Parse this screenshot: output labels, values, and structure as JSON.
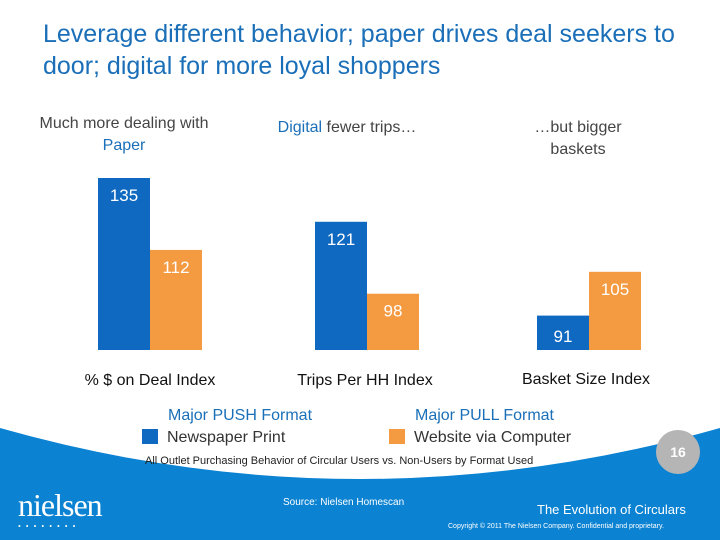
{
  "title": "Leverage different behavior; paper drives deal seekers to door; digital for more loyal shoppers",
  "subtitles": [
    {
      "pre": "Much more dealing with ",
      "hl": "Paper",
      "post": ""
    },
    {
      "pre": "",
      "hl": "Digital",
      "post": " fewer trips…"
    },
    {
      "pre": "…but bigger baskets",
      "hl": "",
      "post": ""
    }
  ],
  "legend": [
    {
      "heading": "Major PUSH Format",
      "label": "Newspaper Print",
      "color": "#1069c0"
    },
    {
      "heading": "Major PULL Format",
      "label": "Website via Computer",
      "color": "#f49a41"
    }
  ],
  "chart_data": {
    "type": "bar",
    "categories": [
      "% $ on Deal Index",
      "Trips Per HH Index",
      "Basket Size Index"
    ],
    "series": [
      {
        "name": "Newspaper Print",
        "values": [
          135,
          121,
          91
        ],
        "color": "#1069c0"
      },
      {
        "name": "Website via Computer",
        "values": [
          112,
          98,
          105
        ],
        "color": "#f49a41"
      }
    ],
    "ylim": [
      80,
      135
    ],
    "grid": false,
    "legend_placement": "bottom"
  },
  "footnote": "All Outlet Purchasing Behavior of Circular Users vs. Non-Users by Format Used",
  "page_number": "16",
  "source": "Source:  Nielsen Homescan",
  "logo": "nielsen",
  "deck_title": "The Evolution of Circulars",
  "copyright": "Copyright © 2011 The Nielsen Company. Confidential and proprietary.",
  "colors": {
    "footer_blue": "#0b82d2",
    "badge_gray": "#b5b5b5"
  }
}
